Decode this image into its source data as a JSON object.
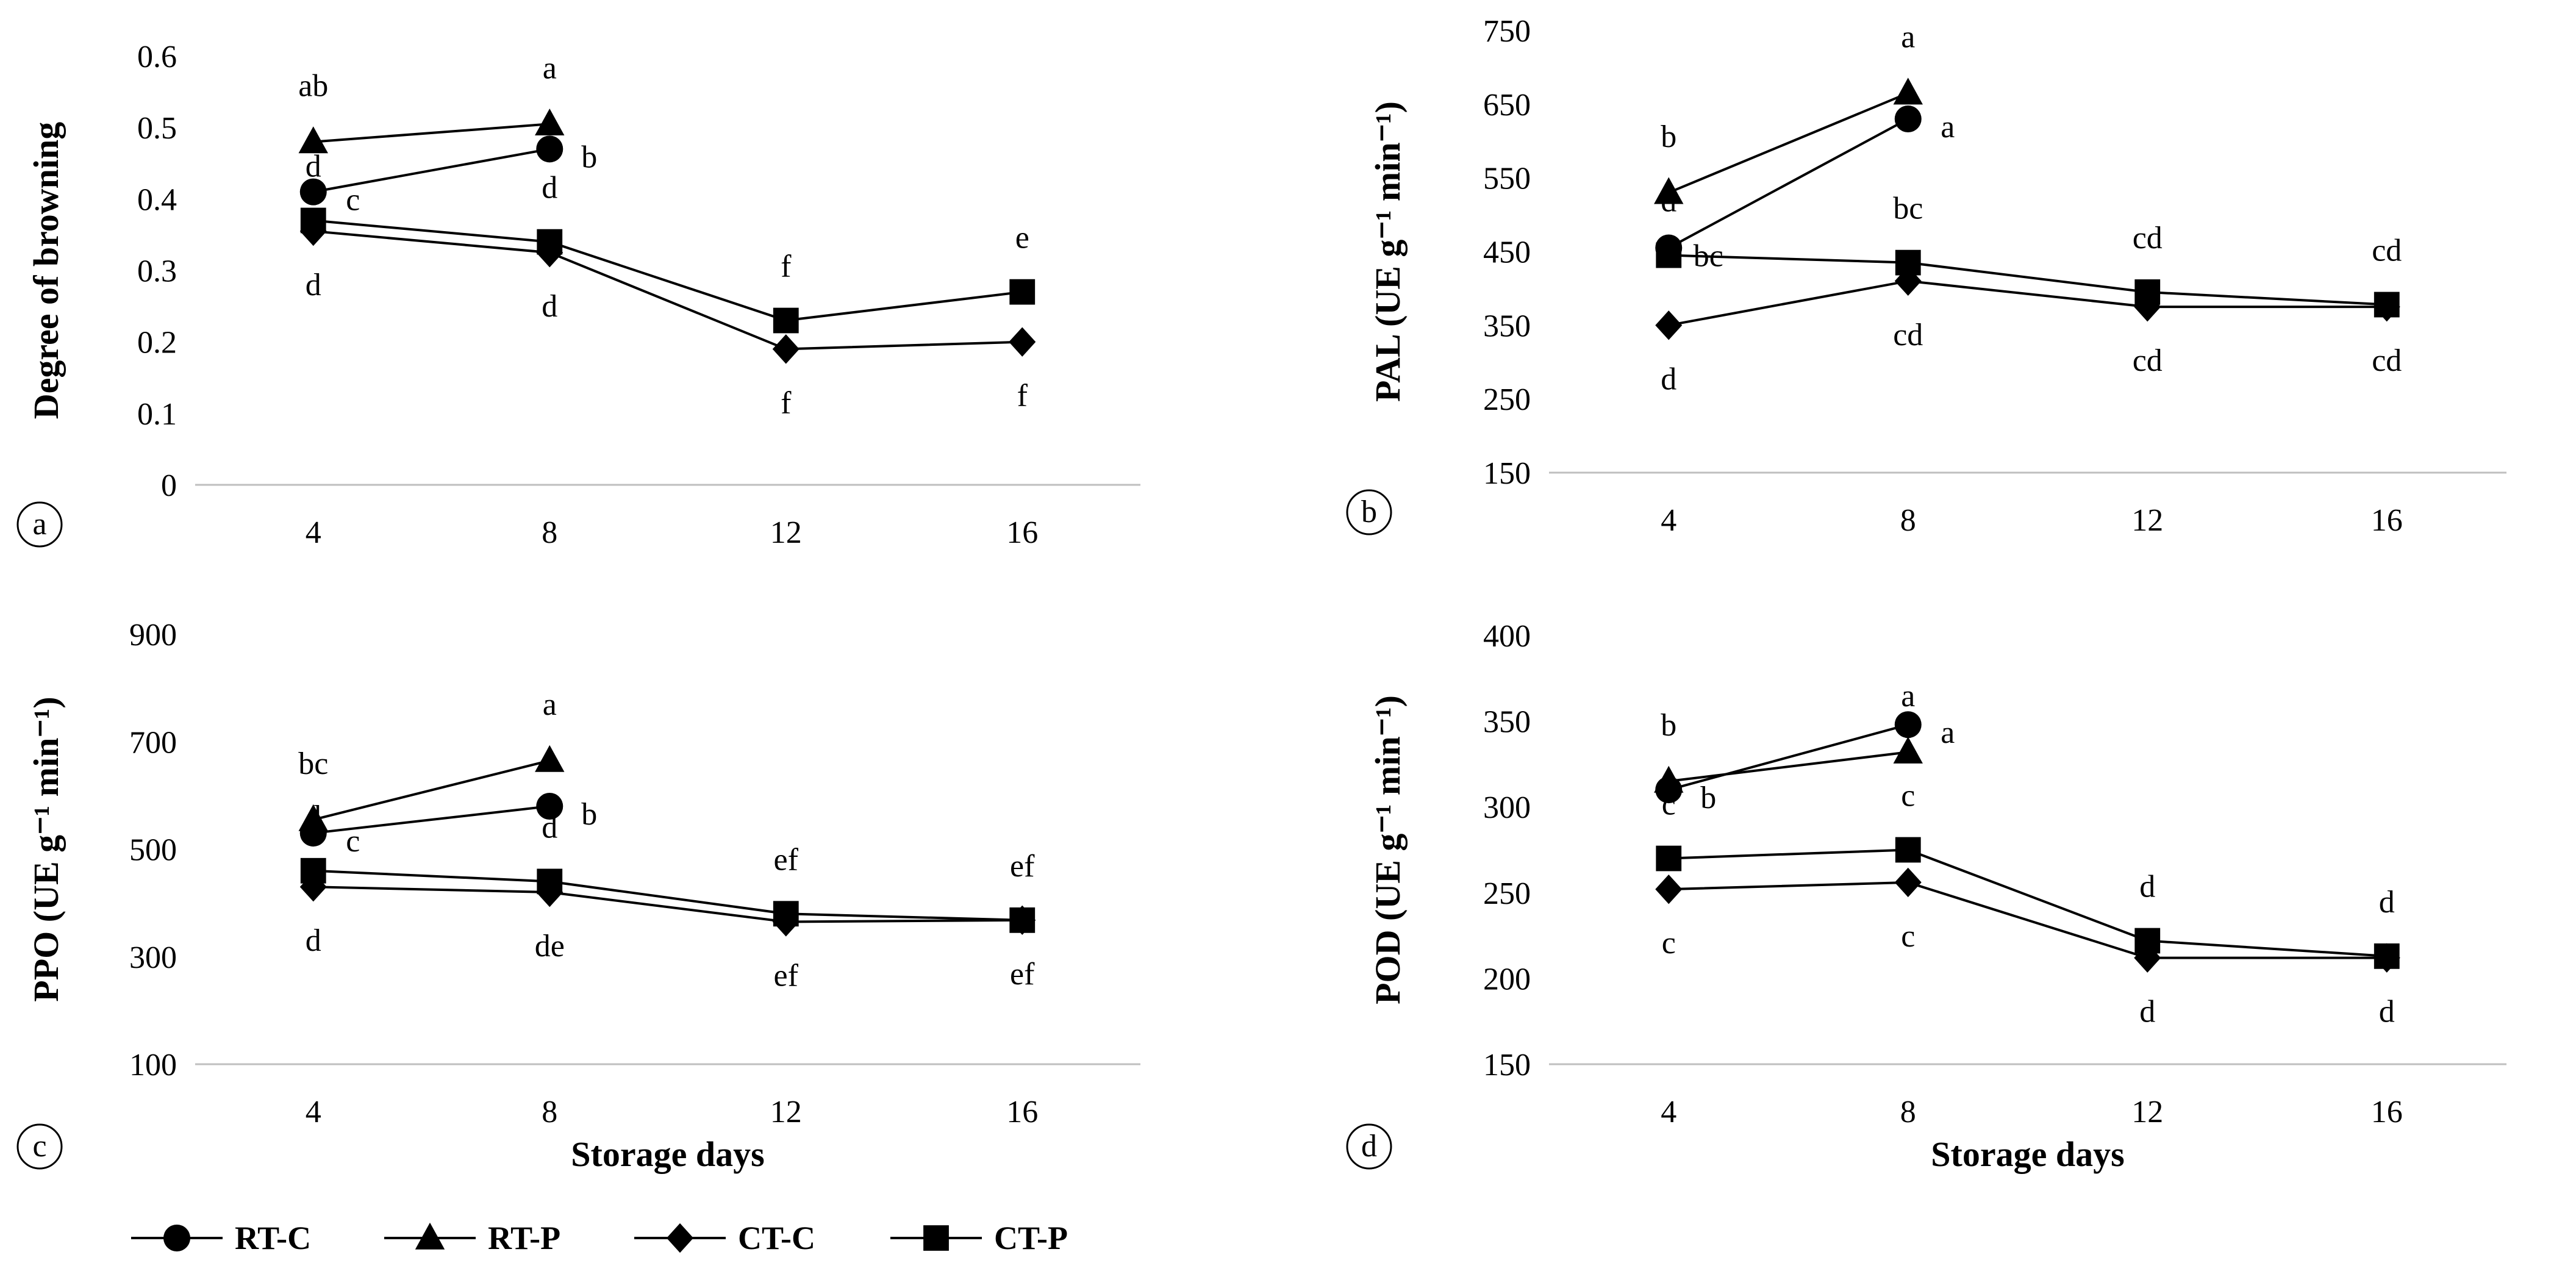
{
  "legend": [
    {
      "name": "RT-C",
      "marker": "circle"
    },
    {
      "name": "RT-P",
      "marker": "triangle"
    },
    {
      "name": "CT-C",
      "marker": "diamond"
    },
    {
      "name": "CT-P",
      "marker": "square"
    }
  ],
  "chart_data": [
    {
      "type": "line",
      "panel": "a",
      "ylabel": "Degree of browning",
      "xlabel": "",
      "x": [
        4,
        8,
        12,
        16
      ],
      "ylim": [
        0,
        0.6
      ],
      "yticks": [
        "0",
        "0.1",
        "0.2",
        "0.3",
        "0.4",
        "0.5",
        "0.6"
      ],
      "series": [
        {
          "name": "RT-C",
          "values": [
            0.41,
            0.47,
            null,
            null
          ],
          "letters": [
            "c",
            "b",
            null,
            null
          ]
        },
        {
          "name": "RT-P",
          "values": [
            0.48,
            0.505,
            null,
            null
          ],
          "letters": [
            "ab",
            "a",
            null,
            null
          ]
        },
        {
          "name": "CT-C",
          "values": [
            0.355,
            0.325,
            0.19,
            0.2
          ],
          "letters": [
            "d",
            "d",
            "f",
            "f"
          ]
        },
        {
          "name": "CT-P",
          "values": [
            0.37,
            0.34,
            0.23,
            0.27
          ],
          "letters": [
            "d",
            "d",
            "f",
            "e"
          ]
        }
      ]
    },
    {
      "type": "line",
      "panel": "b",
      "ylabel": "PAL (UE g⁻¹ min⁻¹)",
      "xlabel": "",
      "x": [
        4,
        8,
        12,
        16
      ],
      "ylim": [
        150,
        750
      ],
      "yticks": [
        "150",
        "250",
        "350",
        "450",
        "550",
        "650",
        "750"
      ],
      "series": [
        {
          "name": "RT-C",
          "values": [
            455,
            630,
            null,
            null
          ],
          "letters": [
            "bc",
            "a",
            null,
            null
          ]
        },
        {
          "name": "RT-P",
          "values": [
            530,
            665,
            null,
            null
          ],
          "letters": [
            "b",
            "a",
            null,
            null
          ]
        },
        {
          "name": "CT-C",
          "values": [
            350,
            410,
            375,
            375
          ],
          "letters": [
            "d",
            "cd",
            "cd",
            "cd"
          ]
        },
        {
          "name": "CT-P",
          "values": [
            445,
            435,
            395,
            378
          ],
          "letters": [
            "d",
            "bc",
            "cd",
            "cd"
          ]
        }
      ]
    },
    {
      "type": "line",
      "panel": "c",
      "ylabel": "PPO (UE g⁻¹ min⁻¹)",
      "xlabel": "Storage days",
      "x": [
        4,
        8,
        12,
        16
      ],
      "ylim": [
        100,
        900
      ],
      "yticks": [
        "100",
        "300",
        "500",
        "700",
        "900"
      ],
      "series": [
        {
          "name": "RT-C",
          "values": [
            530,
            580,
            null,
            null
          ],
          "letters": [
            "c",
            "b",
            null,
            null
          ]
        },
        {
          "name": "RT-P",
          "values": [
            555,
            665,
            null,
            null
          ],
          "letters": [
            "bc",
            "a",
            null,
            null
          ]
        },
        {
          "name": "CT-C",
          "values": [
            430,
            420,
            365,
            368
          ],
          "letters": [
            "d",
            "de",
            "ef",
            "ef"
          ]
        },
        {
          "name": "CT-P",
          "values": [
            460,
            440,
            380,
            368
          ],
          "letters": [
            "d",
            "d",
            "ef",
            "ef"
          ]
        }
      ]
    },
    {
      "type": "line",
      "panel": "d",
      "ylabel": "POD (UE g⁻¹ min⁻¹)",
      "xlabel": "Storage days",
      "x": [
        4,
        8,
        12,
        16
      ],
      "ylim": [
        150,
        400
      ],
      "yticks": [
        "150",
        "200",
        "250",
        "300",
        "350",
        "400"
      ],
      "series": [
        {
          "name": "RT-C",
          "values": [
            310,
            348,
            null,
            null
          ],
          "letters": [
            "b",
            "a",
            null,
            null
          ]
        },
        {
          "name": "RT-P",
          "values": [
            315,
            332,
            null,
            null
          ],
          "letters": [
            "b",
            "a",
            null,
            null
          ]
        },
        {
          "name": "CT-C",
          "values": [
            252,
            256,
            212,
            212
          ],
          "letters": [
            "c",
            "c",
            "d",
            "d"
          ]
        },
        {
          "name": "CT-P",
          "values": [
            270,
            275,
            222,
            213
          ],
          "letters": [
            "c",
            "c",
            "d",
            "d"
          ]
        }
      ]
    }
  ]
}
